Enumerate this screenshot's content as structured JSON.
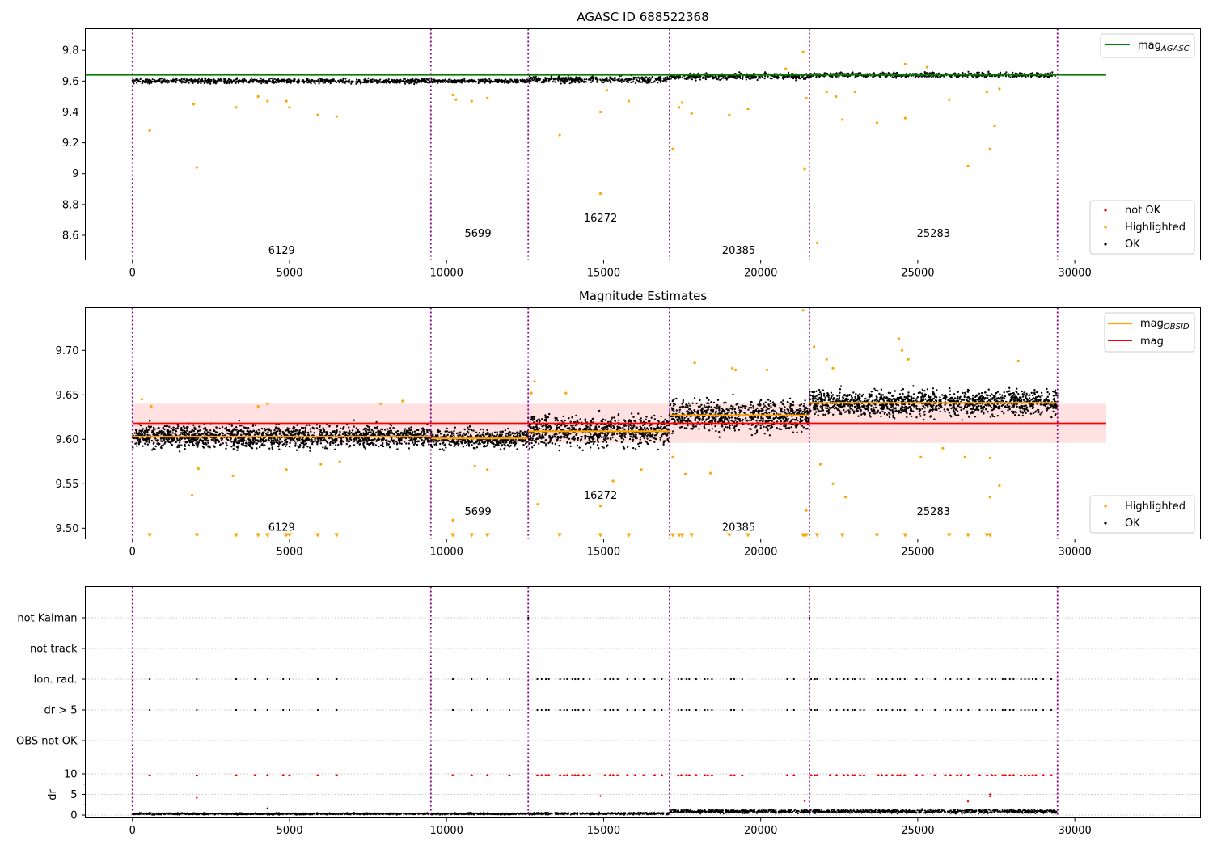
{
  "chart_data": [
    {
      "type": "scatter",
      "title": "AGASC ID 688522368",
      "xlim": [
        -1500,
        34000
      ],
      "ylim": [
        8.44,
        9.94
      ],
      "xticks": [
        0,
        5000,
        10000,
        15000,
        20000,
        25000,
        30000
      ],
      "yticks": [
        8.6,
        8.8,
        9.0,
        9.2,
        9.4,
        9.6,
        9.8
      ],
      "obsid_boundaries": [
        0,
        9500,
        12600,
        17100,
        21550,
        29450
      ],
      "obsid_labels": [
        {
          "label": "6129",
          "x": 4750,
          "y": 8.48
        },
        {
          "label": "5699",
          "x": 11000,
          "y": 8.59
        },
        {
          "label": "16272",
          "x": 14900,
          "y": 8.69
        },
        {
          "label": "20385",
          "x": 19300,
          "y": 8.48
        },
        {
          "label": "25283",
          "x": 25500,
          "y": 8.59
        }
      ],
      "mag_agasc": 9.64,
      "segments": [
        {
          "x0": 0,
          "x1": 9500,
          "level": 9.6,
          "spread": 0.015
        },
        {
          "x0": 9500,
          "x1": 12600,
          "level": 9.6,
          "spread": 0.012
        },
        {
          "x0": 12600,
          "x1": 17100,
          "level": 9.61,
          "spread": 0.02
        },
        {
          "x0": 17100,
          "x1": 21550,
          "level": 9.63,
          "spread": 0.02
        },
        {
          "x0": 21550,
          "x1": 29450,
          "level": 9.64,
          "spread": 0.015
        }
      ],
      "highlighted_points": [
        [
          550,
          9.28
        ],
        [
          2050,
          9.04
        ],
        [
          1950,
          9.45
        ],
        [
          3300,
          9.43
        ],
        [
          4000,
          9.5
        ],
        [
          4300,
          9.47
        ],
        [
          4900,
          9.47
        ],
        [
          5000,
          9.43
        ],
        [
          5900,
          9.38
        ],
        [
          6500,
          9.37
        ],
        [
          10200,
          9.51
        ],
        [
          10300,
          9.48
        ],
        [
          10800,
          9.47
        ],
        [
          11300,
          9.49
        ],
        [
          13600,
          9.25
        ],
        [
          14900,
          9.4
        ],
        [
          14900,
          8.87
        ],
        [
          15100,
          9.54
        ],
        [
          15800,
          9.47
        ],
        [
          17200,
          9.16
        ],
        [
          17400,
          9.43
        ],
        [
          17500,
          9.46
        ],
        [
          17800,
          9.39
        ],
        [
          19000,
          9.38
        ],
        [
          19600,
          9.42
        ],
        [
          21350,
          9.79
        ],
        [
          21400,
          9.03
        ],
        [
          21450,
          9.49
        ],
        [
          21800,
          8.55
        ],
        [
          22100,
          9.53
        ],
        [
          22400,
          9.5
        ],
        [
          22600,
          9.35
        ],
        [
          23000,
          9.53
        ],
        [
          23700,
          9.33
        ],
        [
          24600,
          9.36
        ],
        [
          26000,
          9.48
        ],
        [
          26600,
          9.05
        ],
        [
          27200,
          9.53
        ],
        [
          27300,
          9.16
        ],
        [
          27450,
          9.31
        ],
        [
          27600,
          9.55
        ],
        [
          20800,
          9.68
        ],
        [
          24600,
          9.71
        ],
        [
          25300,
          9.69
        ]
      ],
      "legend": {
        "position": "lower-right",
        "entries": [
          {
            "label": "not OK",
            "color": "#ff0000"
          },
          {
            "label": "Highlighted",
            "color": "#ffa500"
          },
          {
            "label": "OK",
            "color": "#000000"
          }
        ]
      },
      "legend_top": {
        "position": "upper-right",
        "label": "mag",
        "subscript": "AGASC",
        "color": "#008000"
      }
    },
    {
      "type": "scatter",
      "title": "Magnitude Estimates",
      "xlim": [
        -1500,
        34000
      ],
      "ylim": [
        9.488,
        9.748
      ],
      "xticks": [
        0,
        5000,
        10000,
        15000,
        20000,
        25000,
        30000
      ],
      "yticks": [
        9.5,
        9.55,
        9.6,
        9.65,
        9.7
      ],
      "ytick_labels": [
        "9.50",
        "9.55",
        "9.60",
        "9.65",
        "9.70"
      ],
      "obsid_boundaries": [
        0,
        9500,
        12600,
        17100,
        21550,
        29450
      ],
      "obsid_labels": [
        {
          "label": "6129",
          "x": 4750,
          "y": 9.497
        },
        {
          "label": "5699",
          "x": 11000,
          "y": 9.515
        },
        {
          "label": "16272",
          "x": 14900,
          "y": 9.533
        },
        {
          "label": "20385",
          "x": 19300,
          "y": 9.497
        },
        {
          "label": "25283",
          "x": 25500,
          "y": 9.515
        }
      ],
      "mag": 9.618,
      "mag_band": [
        9.596,
        9.64
      ],
      "mag_band_x": [
        0,
        31000
      ],
      "segments": [
        {
          "x0": 0,
          "x1": 9500,
          "mean": 9.603,
          "spread": 0.012
        },
        {
          "x0": 9500,
          "x1": 12600,
          "mean": 9.601,
          "spread": 0.01
        },
        {
          "x0": 12600,
          "x1": 17100,
          "mean": 9.609,
          "spread": 0.017
        },
        {
          "x0": 17100,
          "x1": 21550,
          "mean": 9.627,
          "spread": 0.017
        },
        {
          "x0": 21550,
          "x1": 29450,
          "mean": 9.641,
          "spread": 0.014
        }
      ],
      "highlighted_points": [
        [
          300,
          9.645
        ],
        [
          600,
          9.637
        ],
        [
          1900,
          9.537
        ],
        [
          2100,
          9.567
        ],
        [
          3200,
          9.559
        ],
        [
          4000,
          9.637
        ],
        [
          4300,
          9.64
        ],
        [
          4900,
          9.566
        ],
        [
          6000,
          9.572
        ],
        [
          6600,
          9.575
        ],
        [
          7900,
          9.64
        ],
        [
          8600,
          9.643
        ],
        [
          10200,
          9.509
        ],
        [
          10900,
          9.57
        ],
        [
          11300,
          9.566
        ],
        [
          12700,
          9.652
        ],
        [
          12800,
          9.665
        ],
        [
          12900,
          9.527
        ],
        [
          13800,
          9.652
        ],
        [
          14900,
          9.525
        ],
        [
          15300,
          9.553
        ],
        [
          16200,
          9.566
        ],
        [
          17200,
          9.58
        ],
        [
          17600,
          9.561
        ],
        [
          18400,
          9.562
        ],
        [
          17900,
          9.686
        ],
        [
          19100,
          9.68
        ],
        [
          19200,
          9.678
        ],
        [
          20200,
          9.678
        ],
        [
          21350,
          9.745
        ],
        [
          21450,
          9.52
        ],
        [
          21700,
          9.704
        ],
        [
          21900,
          9.572
        ],
        [
          22300,
          9.55
        ],
        [
          22700,
          9.535
        ],
        [
          22100,
          9.69
        ],
        [
          22300,
          9.68
        ],
        [
          24400,
          9.713
        ],
        [
          24500,
          9.7
        ],
        [
          24700,
          9.69
        ],
        [
          25100,
          9.58
        ],
        [
          25800,
          9.59
        ],
        [
          26500,
          9.58
        ],
        [
          27300,
          9.535
        ],
        [
          27600,
          9.548
        ],
        [
          27300,
          9.579
        ],
        [
          28200,
          9.688
        ]
      ],
      "clipped_low_x": [
        550,
        2050,
        3300,
        4000,
        4300,
        4900,
        5000,
        5900,
        6500,
        10200,
        10800,
        11300,
        13600,
        14900,
        15800,
        17200,
        17400,
        17500,
        17800,
        19000,
        19600,
        21350,
        21400,
        21450,
        21800,
        22600,
        23700,
        24600,
        26000,
        26600,
        27200,
        27300
      ],
      "legend": {
        "position": "lower-right",
        "entries": [
          {
            "label": "Highlighted",
            "color": "#ffa500"
          },
          {
            "label": "OK",
            "color": "#000000"
          }
        ]
      },
      "legend_top": {
        "position": "upper-right",
        "entries": [
          {
            "label": "mag",
            "subscript": "OBSID",
            "color": "#ffa500"
          },
          {
            "label": "mag",
            "color": "#ff0000"
          }
        ]
      }
    },
    {
      "type": "scatter",
      "xlim": [
        -1500,
        34000
      ],
      "obsid_boundaries": [
        0,
        9500,
        12600,
        17100,
        21550,
        29450
      ],
      "flag_rows": [
        "not Kalman",
        "not track",
        "Ion. rad.",
        "dr > 5",
        "OBS not OK"
      ],
      "isolated_flag_x": [
        550,
        2050,
        3300,
        3900,
        4300,
        4800,
        5000,
        5900,
        6500,
        10200,
        10800,
        11300,
        12000
      ],
      "dense_flag_ranges": [
        [
          12750,
          17100
        ],
        [
          17100,
          18500
        ],
        [
          18900,
          19600
        ],
        [
          20800,
          21550
        ],
        [
          21550,
          29300
        ]
      ],
      "not_kalman_x": [
        12600,
        21550
      ],
      "dr": {
        "ylabel": "dr",
        "yticks": [
          0,
          5,
          10
        ],
        "ylim": [
          -0.3,
          10.3
        ],
        "clip_value": 10,
        "segments": [
          {
            "x0": 0,
            "x1": 9500,
            "level": 0.3,
            "spread": 0.2
          },
          {
            "x0": 9500,
            "x1": 12600,
            "level": 0.3,
            "spread": 0.2
          },
          {
            "x0": 12600,
            "x1": 17100,
            "level": 0.35,
            "spread": 0.25
          },
          {
            "x0": 17100,
            "x1": 21550,
            "level": 0.9,
            "spread": 0.45
          },
          {
            "x0": 21550,
            "x1": 29450,
            "level": 0.9,
            "spread": 0.45
          }
        ],
        "outlier_points": [
          [
            2050,
            4.2
          ],
          [
            14900,
            4.6
          ],
          [
            21400,
            3.4
          ],
          [
            26600,
            3.3
          ],
          [
            27300,
            4.5
          ],
          [
            27300,
            5.0
          ],
          [
            4300,
            1.6
          ]
        ]
      }
    }
  ]
}
